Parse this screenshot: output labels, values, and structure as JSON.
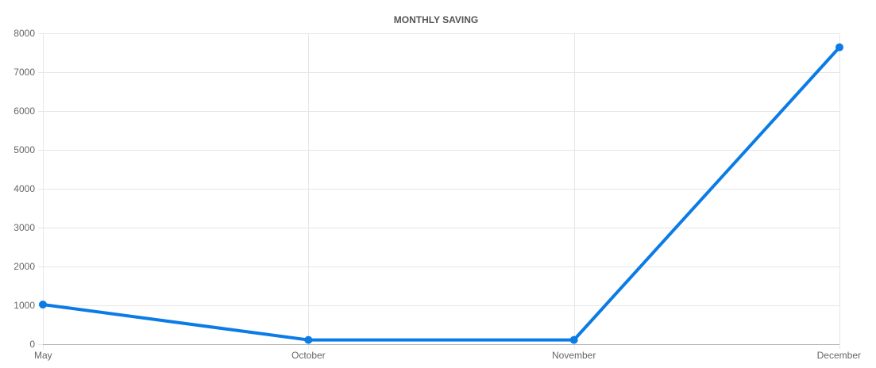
{
  "chart_data": {
    "type": "line",
    "title": "MONTHLY SAVING",
    "xlabel": "",
    "ylabel": "",
    "categories": [
      "May",
      "October",
      "November",
      "December"
    ],
    "series": [
      {
        "values": [
          1020,
          110,
          110,
          7640
        ],
        "color": "#0b7be6"
      }
    ],
    "ylim": [
      0,
      8000
    ],
    "yticks": [
      0,
      1000,
      2000,
      3000,
      4000,
      5000,
      6000,
      7000,
      8000
    ],
    "grid": true,
    "legend": "none",
    "colors": {
      "grid": "#e6e6e6",
      "axis": "#b3b3b3",
      "text": "#666666",
      "title": "#555555"
    }
  }
}
